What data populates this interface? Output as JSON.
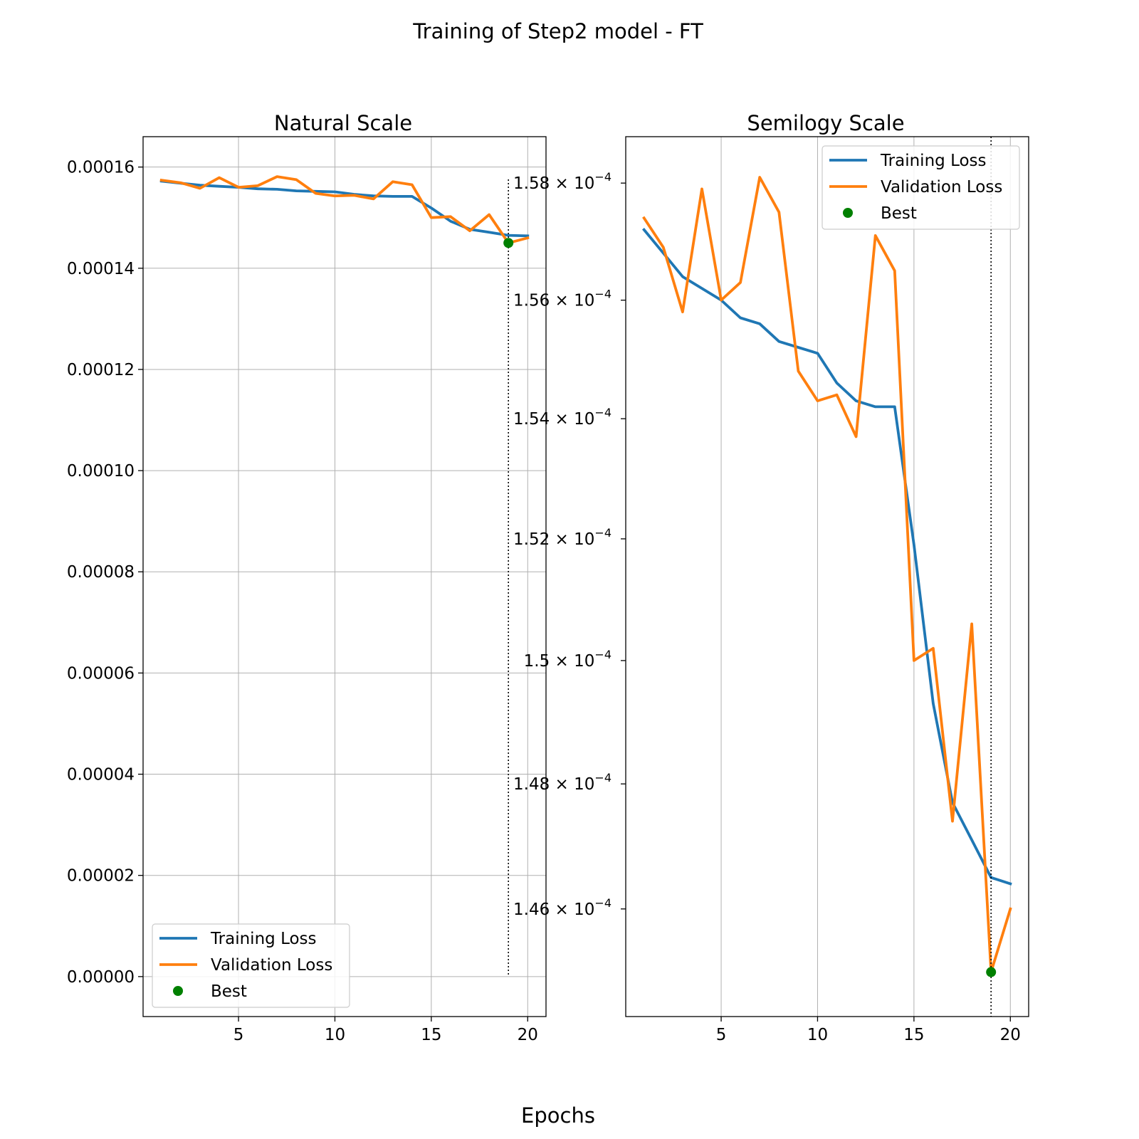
{
  "figure": {
    "suptitle": "Training of Step2 model - FT",
    "xlabel": "Epochs"
  },
  "colors": {
    "training": "#1f77b4",
    "validation": "#ff7f0e",
    "best": "#008000",
    "grid": "#b0b0b0"
  },
  "chart_data": [
    {
      "type": "line",
      "title": "Natural Scale",
      "yscale": "linear",
      "x": [
        1,
        2,
        3,
        4,
        5,
        6,
        7,
        8,
        9,
        10,
        11,
        12,
        13,
        14,
        15,
        16,
        17,
        18,
        19,
        20
      ],
      "series": [
        {
          "name": "Training Loss",
          "values": [
            0.0001572,
            0.0001568,
            0.0001564,
            0.0001562,
            0.000156,
            0.0001557,
            0.0001556,
            0.0001553,
            0.0001552,
            0.0001551,
            0.0001546,
            0.0001543,
            0.0001542,
            0.0001542,
            0.0001519,
            0.0001493,
            0.0001477,
            0.0001471,
            0.0001465,
            0.0001464
          ]
        },
        {
          "name": "Validation Loss",
          "values": [
            0.0001574,
            0.0001569,
            0.0001558,
            0.0001579,
            0.000156,
            0.0001563,
            0.0001581,
            0.0001575,
            0.0001548,
            0.0001543,
            0.0001544,
            0.0001537,
            0.0001571,
            0.0001565,
            0.00015,
            0.0001502,
            0.0001474,
            0.0001506,
            0.000145,
            0.000146
          ]
        }
      ],
      "best": {
        "name": "Best",
        "x": 19,
        "y": 0.000145
      },
      "xticks": [
        5,
        10,
        15,
        20
      ],
      "xlim": [
        0.05,
        20.95
      ],
      "yticks": [
        0.0,
        2e-05,
        4e-05,
        6e-05,
        8e-05,
        0.0001,
        0.00012,
        0.00014,
        0.00016
      ],
      "ytick_labels": [
        "0.00000",
        "0.00002",
        "0.00004",
        "0.00006",
        "0.00008",
        "0.00010",
        "0.00012",
        "0.00014",
        "0.00016"
      ],
      "ylim": [
        -7.9e-06,
        0.000166
      ],
      "grid": true,
      "legend": "lower left"
    },
    {
      "type": "line",
      "title": "Semilogy Scale",
      "yscale": "log",
      "x": [
        1,
        2,
        3,
        4,
        5,
        6,
        7,
        8,
        9,
        10,
        11,
        12,
        13,
        14,
        15,
        16,
        17,
        18,
        19,
        20
      ],
      "series": [
        {
          "name": "Training Loss",
          "values": [
            0.0001572,
            0.0001568,
            0.0001564,
            0.0001562,
            0.000156,
            0.0001557,
            0.0001556,
            0.0001553,
            0.0001552,
            0.0001551,
            0.0001546,
            0.0001543,
            0.0001542,
            0.0001542,
            0.0001519,
            0.0001493,
            0.0001477,
            0.0001471,
            0.0001465,
            0.0001464
          ]
        },
        {
          "name": "Validation Loss",
          "values": [
            0.0001574,
            0.0001569,
            0.0001558,
            0.0001579,
            0.000156,
            0.0001563,
            0.0001581,
            0.0001575,
            0.0001548,
            0.0001543,
            0.0001544,
            0.0001537,
            0.0001571,
            0.0001565,
            0.00015,
            0.0001502,
            0.0001474,
            0.0001506,
            0.000145,
            0.000146
          ]
        }
      ],
      "best": {
        "name": "Best",
        "x": 19,
        "y": 0.000145
      },
      "xticks": [
        5,
        10,
        15,
        20
      ],
      "xlim": [
        0.05,
        20.95
      ],
      "yticks": [
        0.000146,
        0.000148,
        0.00015,
        0.000152,
        0.000154,
        0.000156,
        0.000158
      ],
      "ytick_labels": [
        {
          "mantissa": "1.46",
          "exponent": "−4"
        },
        {
          "mantissa": "1.48",
          "exponent": "−4"
        },
        {
          "mantissa": "1.5",
          "exponent": "−4"
        },
        {
          "mantissa": "1.52",
          "exponent": "−4"
        },
        {
          "mantissa": "1.54",
          "exponent": "−4"
        },
        {
          "mantissa": "1.56",
          "exponent": "−4"
        },
        {
          "mantissa": "1.58",
          "exponent": "−4"
        }
      ],
      "ylim": [
        0.0001443,
        0.0001588
      ],
      "grid": true,
      "legend": "upper right"
    }
  ]
}
